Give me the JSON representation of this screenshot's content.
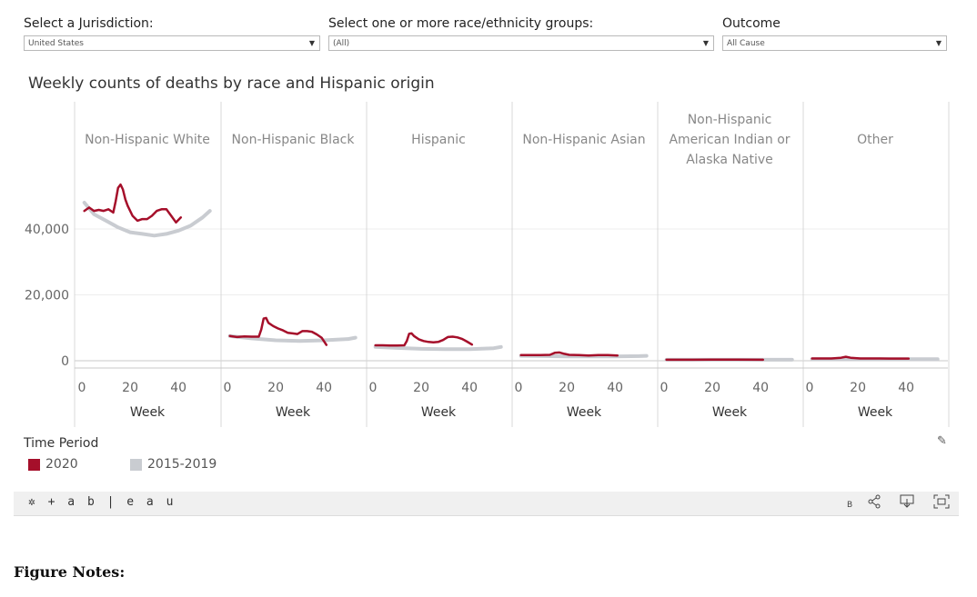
{
  "filters": {
    "jurisdiction": {
      "label": "Select a Jurisdiction:",
      "value": "United States"
    },
    "race": {
      "label": "Select one or more race/ethnicity groups:",
      "value": "(All)"
    },
    "outcome": {
      "label": "Outcome",
      "value": "All Cause"
    }
  },
  "chart_title": "Weekly counts of deaths by race and Hispanic origin",
  "chart_data": {
    "type": "line",
    "title": "Weekly counts of deaths by race and Hispanic origin",
    "ylabel": "",
    "xlabel": "Week",
    "ylim": [
      0,
      60000
    ],
    "yticks": [
      0,
      20000,
      40000
    ],
    "ytick_labels": [
      "0",
      "20,000",
      "40,000"
    ],
    "xlim": [
      0,
      55
    ],
    "xticks": [
      "0",
      "20",
      "40"
    ],
    "colors": {
      "2020": "#a50f2a",
      "2015-2019": "#c9ccd1"
    },
    "panels": [
      {
        "name": "Non-Hispanic White",
        "series": [
          {
            "name": "2020",
            "x": [
              1,
              3,
              5,
              7,
              9,
              11,
              13,
              14,
              15,
              16,
              17,
              18,
              19,
              21,
              23,
              25,
              27,
              29,
              31,
              33,
              35,
              37,
              39,
              41
            ],
            "y": [
              45500,
              46500,
              45500,
              45800,
              45500,
              46000,
              45000,
              48500,
              52500,
              53500,
              52000,
              49000,
              47000,
              44000,
              42500,
              43000,
              43000,
              44000,
              45500,
              46000,
              46000,
              44000,
              42000,
              43500
            ]
          },
          {
            "name": "2015-2019",
            "x": [
              1,
              5,
              10,
              15,
              20,
              25,
              30,
              35,
              40,
              45,
              50,
              53
            ],
            "y": [
              48000,
              44500,
              42500,
              40500,
              39000,
              38500,
              38000,
              38500,
              39500,
              41000,
              43500,
              45500
            ]
          }
        ]
      },
      {
        "name": "Non-Hispanic Black",
        "series": [
          {
            "name": "2020",
            "x": [
              1,
              4,
              7,
              10,
              13,
              14,
              15,
              16,
              17,
              19,
              21,
              23,
              25,
              27,
              29,
              31,
              33,
              35,
              37,
              39,
              41
            ],
            "y": [
              7500,
              7200,
              7400,
              7300,
              7300,
              9500,
              12800,
              13000,
              11500,
              10500,
              9800,
              9200,
              8500,
              8300,
              8100,
              9000,
              9000,
              8800,
              8000,
              7000,
              4800
            ]
          },
          {
            "name": "2015-2019",
            "x": [
              1,
              10,
              20,
              30,
              40,
              50,
              53
            ],
            "y": [
              7500,
              6800,
              6200,
              6000,
              6200,
              6600,
              7000
            ]
          }
        ]
      },
      {
        "name": "Hispanic",
        "series": [
          {
            "name": "2020",
            "x": [
              1,
              4,
              7,
              10,
              13,
              14,
              15,
              16,
              17,
              19,
              21,
              23,
              25,
              27,
              29,
              31,
              33,
              35,
              37,
              39,
              41
            ],
            "y": [
              4700,
              4700,
              4600,
              4600,
              4700,
              6000,
              8200,
              8300,
              7500,
              6500,
              6000,
              5700,
              5600,
              5700,
              6300,
              7200,
              7300,
              7100,
              6600,
              5800,
              4900
            ]
          },
          {
            "name": "2015-2019",
            "x": [
              1,
              10,
              20,
              30,
              40,
              50,
              53
            ],
            "y": [
              4200,
              3900,
              3600,
              3500,
              3500,
              3800,
              4200
            ]
          }
        ]
      },
      {
        "name": "Non-Hispanic Asian",
        "series": [
          {
            "name": "2020",
            "x": [
              1,
              5,
              9,
              13,
              15,
              17,
              19,
              21,
              25,
              29,
              33,
              37,
              41
            ],
            "y": [
              1700,
              1700,
              1700,
              1800,
              2400,
              2500,
              2100,
              1800,
              1700,
              1600,
              1700,
              1700,
              1600
            ]
          },
          {
            "name": "2015-2019",
            "x": [
              1,
              10,
              20,
              30,
              40,
              50,
              53
            ],
            "y": [
              1500,
              1400,
              1300,
              1300,
              1300,
              1400,
              1500
            ]
          }
        ]
      },
      {
        "name": "Non-Hispanic American Indian or Alaska Native",
        "series": [
          {
            "name": "2020",
            "x": [
              1,
              10,
              20,
              30,
              41
            ],
            "y": [
              300,
              300,
              350,
              350,
              300
            ]
          },
          {
            "name": "2015-2019",
            "x": [
              1,
              10,
              20,
              30,
              40,
              50,
              53
            ],
            "y": [
              300,
              300,
              300,
              300,
              300,
              300,
              300
            ]
          }
        ]
      },
      {
        "name": "Other",
        "series": [
          {
            "name": "2020",
            "x": [
              1,
              5,
              9,
              13,
              15,
              17,
              21,
              25,
              29,
              33,
              37,
              41
            ],
            "y": [
              700,
              700,
              700,
              900,
              1200,
              900,
              700,
              700,
              700,
              650,
              650,
              650
            ]
          },
          {
            "name": "2015-2019",
            "x": [
              1,
              10,
              20,
              30,
              40,
              50,
              53
            ],
            "y": [
              500,
              500,
              500,
              500,
              500,
              500,
              500
            ]
          }
        ]
      }
    ],
    "panel_labels": [
      [
        "Non-Hispanic White"
      ],
      [
        "Non-Hispanic Black"
      ],
      [
        "Hispanic"
      ],
      [
        "Non-Hispanic Asian"
      ],
      [
        "Non-Hispanic",
        "American Indian or",
        "Alaska Native"
      ],
      [
        "Other"
      ]
    ],
    "legend": {
      "title": "Time Period",
      "placement": "bottom-left",
      "items": [
        "2020",
        "2015-2019"
      ]
    }
  },
  "legend": {
    "title": "Time Period",
    "item_2020": "2020",
    "item_baseline": "2015-2019"
  },
  "toolbar": {
    "logo": "+ a b | e a u",
    "icons": [
      "tableau-logo-icon",
      "b-label",
      "share-icon",
      "download-icon",
      "fullscreen-icon"
    ],
    "b_label": "B"
  },
  "notes_heading": "Figure Notes:"
}
